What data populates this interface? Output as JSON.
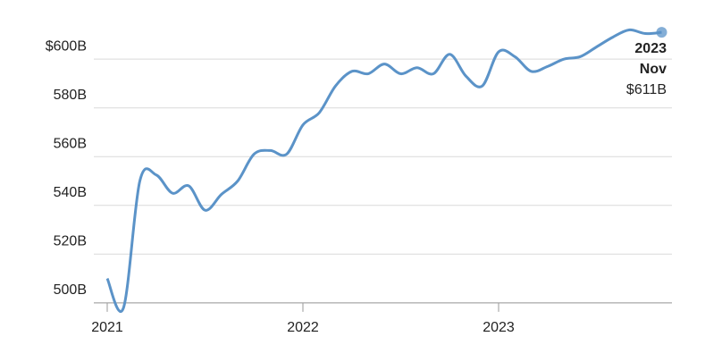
{
  "chart_data": {
    "type": "line",
    "categories": [
      "2021",
      null,
      null,
      null,
      null,
      null,
      null,
      null,
      null,
      null,
      null,
      null,
      "2022",
      null,
      null,
      null,
      null,
      null,
      null,
      null,
      null,
      null,
      null,
      null,
      "2023",
      null,
      null,
      null,
      null,
      null,
      null,
      null,
      null,
      null,
      null
    ],
    "series": [
      {
        "color": "#5b93c8",
        "values": [
          510,
          498,
          550,
          552.5,
          545,
          548,
          538,
          544.5,
          550,
          561,
          562.5,
          561,
          573,
          578,
          589,
          595,
          594,
          598,
          594,
          596.5,
          594,
          602,
          593,
          589,
          603,
          601,
          595,
          597,
          600,
          601,
          605,
          609,
          612,
          610.5,
          611
        ]
      }
    ],
    "ylim": [
      497,
      614
    ],
    "yticks": [
      {
        "value": 500,
        "label": "500B"
      },
      {
        "value": 520,
        "label": "520B"
      },
      {
        "value": 540,
        "label": "540B"
      },
      {
        "value": 560,
        "label": "560B"
      },
      {
        "value": 580,
        "label": "580B"
      },
      {
        "value": 600,
        "label": "$600B"
      }
    ],
    "grid": true,
    "annotation": {
      "year": "2023",
      "month": "Nov",
      "value_label": "$611B",
      "color": "#1d4f7a"
    }
  }
}
